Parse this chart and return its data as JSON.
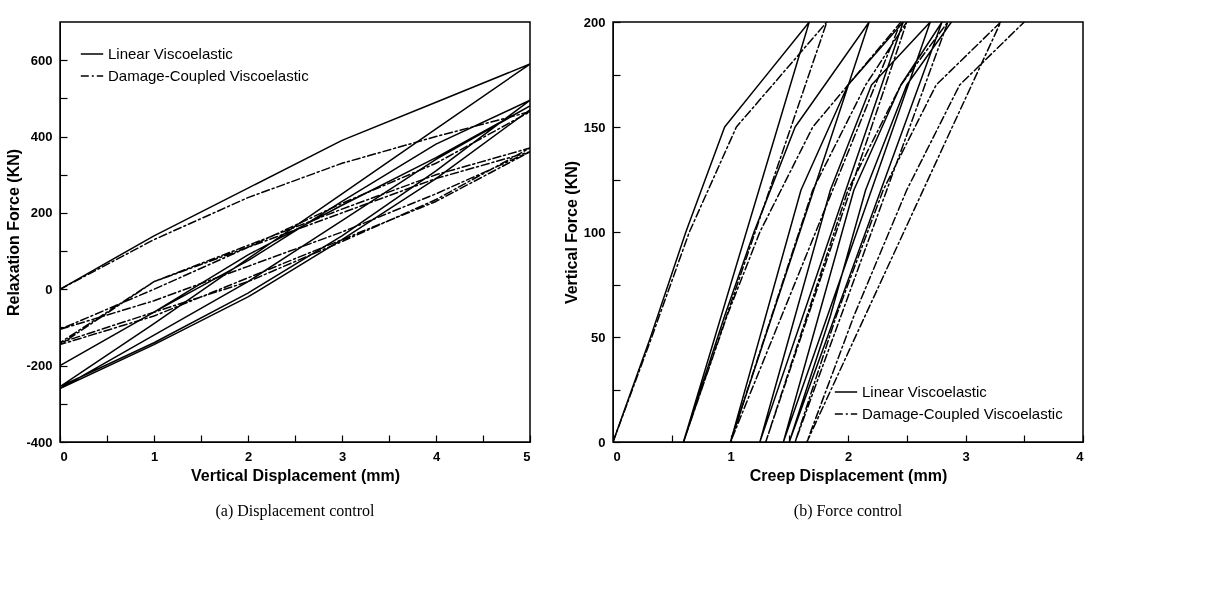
{
  "chart_data": [
    {
      "type": "line",
      "xlabel": "Vertical Displacement (mm)",
      "ylabel": "Relaxation Force (KN)",
      "annotations": [
        "(a) Displacement control"
      ],
      "legend": "top left",
      "xlim": [
        0,
        5
      ],
      "ylim": [
        -400,
        700
      ],
      "xticks": [
        0,
        {
          "value": 0.5,
          "label": null
        },
        1,
        {
          "value": 1.5,
          "label": null
        },
        2,
        {
          "value": 2.5,
          "label": null
        },
        3,
        {
          "value": 3.5,
          "label": null
        },
        4,
        {
          "value": 4.5,
          "label": null
        },
        5
      ],
      "yticks": [
        -400,
        {
          "value": -300,
          "label": null
        },
        -200,
        {
          "value": -100,
          "label": null
        },
        0,
        {
          "value": 100,
          "label": null
        },
        200,
        {
          "value": 300,
          "label": null
        },
        400,
        {
          "value": 500,
          "label": null
        },
        600
      ],
      "series": [
        {
          "name": "Linear Viscoelastic",
          "color": "#000000",
          "line_style": "solid",
          "x": [
            0,
            1,
            2,
            3,
            4,
            5,
            4,
            3,
            2,
            1,
            0,
            1,
            2,
            3,
            4,
            5,
            4,
            3,
            2,
            1,
            0,
            1,
            2,
            3,
            4,
            5,
            4,
            3,
            2,
            1,
            0,
            1,
            2,
            3,
            4,
            5
          ],
          "values": [
            0,
            140,
            265,
            390,
            490,
            590,
            420,
            250,
            80,
            -90,
            -255,
            -140,
            -10,
            140,
            310,
            495,
            380,
            230,
            75,
            -60,
            -200,
            -60,
            90,
            220,
            345,
            480,
            340,
            180,
            20,
            -120,
            -260,
            -145,
            -20,
            130,
            290,
            470
          ]
        },
        {
          "name": "Damage-Coupled Viscoelastic",
          "color": "#000000",
          "line_style": "dashed",
          "x": [
            0,
            1,
            2,
            3,
            4,
            5,
            4,
            3,
            2,
            1,
            0,
            1,
            2,
            3,
            4,
            5,
            4,
            3,
            2,
            1,
            0,
            1,
            2,
            3,
            4,
            5,
            4,
            3,
            2,
            1,
            0,
            1,
            2,
            3,
            4,
            5
          ],
          "values": [
            0,
            130,
            240,
            330,
            400,
            465,
            330,
            225,
            110,
            0,
            -105,
            -30,
            60,
            150,
            250,
            360,
            290,
            200,
            110,
            20,
            -140,
            -60,
            20,
            125,
            235,
            370,
            300,
            210,
            115,
            20,
            -145,
            -70,
            30,
            130,
            230,
            360
          ]
        }
      ]
    },
    {
      "type": "line",
      "xlabel": "Creep Displacement (mm)",
      "ylabel": "Vertical Force (KN)",
      "annotations": [
        "(b) Force control"
      ],
      "legend": "bottom right",
      "xlim": [
        0,
        4
      ],
      "ylim": [
        0,
        200
      ],
      "xticks": [
        0,
        {
          "value": 0.5,
          "label": null
        },
        1,
        {
          "value": 1.5,
          "label": null
        },
        2,
        {
          "value": 2.5,
          "label": null
        },
        3,
        {
          "value": 3.5,
          "label": null
        },
        4
      ],
      "yticks": [
        0,
        {
          "value": 25,
          "label": null
        },
        50,
        {
          "value": 75,
          "label": null
        },
        100,
        {
          "value": 125,
          "label": null
        },
        150,
        {
          "value": 175,
          "label": null
        },
        200
      ],
      "series": [
        {
          "name": "Linear Viscoelastic",
          "color": "#000000",
          "line_style": "solid",
          "x": [
            0,
            0.32,
            0.62,
            0.95,
            1.67,
            0.6,
            0.95,
            1.2,
            1.55,
            2.18,
            1.0,
            1.3,
            1.6,
            2.0,
            2.47,
            1.25,
            1.55,
            1.85,
            2.2,
            2.7,
            1.45,
            1.75,
            2.05,
            2.45,
            2.8,
            1.5,
            1.85,
            2.15,
            2.5,
            2.88
          ],
          "values": [
            0,
            50,
            100,
            150,
            200,
            0,
            60,
            100,
            150,
            200,
            0,
            60,
            120,
            170,
            200,
            0,
            60,
            120,
            170,
            200,
            0,
            60,
            120,
            170,
            200,
            0,
            60,
            120,
            170,
            200
          ]
        },
        {
          "name": "Damage-Coupled Viscoelastic",
          "color": "#000000",
          "line_style": "dashed",
          "x": [
            0,
            0.33,
            0.65,
            1.05,
            1.82,
            0.6,
            0.97,
            1.25,
            1.7,
            2.45,
            1.0,
            1.35,
            1.7,
            2.15,
            2.5,
            1.3,
            1.65,
            2.0,
            2.45,
            2.85,
            1.55,
            1.9,
            2.3,
            2.75,
            3.3,
            1.65,
            2.05,
            2.5,
            2.95,
            3.5
          ],
          "values": [
            0,
            50,
            100,
            150,
            200,
            0,
            60,
            100,
            150,
            200,
            0,
            60,
            120,
            170,
            200,
            0,
            60,
            120,
            170,
            200,
            0,
            60,
            120,
            170,
            200,
            0,
            60,
            120,
            170,
            200
          ]
        }
      ]
    }
  ]
}
